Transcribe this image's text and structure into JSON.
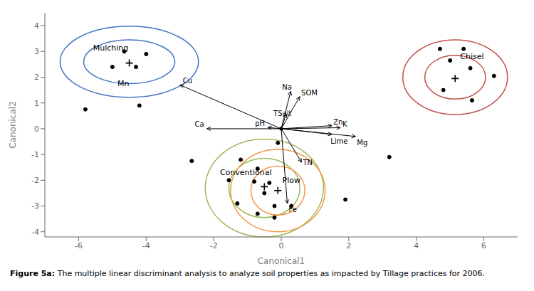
{
  "chart_data": {
    "type": "scatter",
    "xlabel": "Canonical1",
    "ylabel": "Canonical2",
    "xlim": [
      -7,
      7
    ],
    "ylim": [
      -4.2,
      4.5
    ],
    "xticks": [
      -6,
      -4,
      -2,
      0,
      2,
      4,
      6
    ],
    "yticks": [
      -4,
      -3,
      -2,
      -1,
      0,
      1,
      2,
      3,
      4
    ],
    "caption": {
      "bold": "Figure 5a:",
      "text": " The multiple linear discriminant analysis to analyze soil properties as impacted by Tillage practices for 2006."
    },
    "arrows": [
      {
        "label": "Cu",
        "x": -3.0,
        "y": 1.7
      },
      {
        "label": "Ca",
        "x": -2.2,
        "y": 0.0
      },
      {
        "label": "pH",
        "x": -0.4,
        "y": 0.05
      },
      {
        "label": "Na",
        "x": 0.28,
        "y": 1.45
      },
      {
        "label": "SOM",
        "x": 0.55,
        "y": 1.25
      },
      {
        "label": "TSalt",
        "x": 0.15,
        "y": 0.58
      },
      {
        "label": "Zn",
        "x": 1.5,
        "y": 0.12
      },
      {
        "label": "K",
        "x": 1.75,
        "y": 0.04
      },
      {
        "label": "Lime",
        "x": 1.5,
        "y": -0.22
      },
      {
        "label": "Mg",
        "x": 2.2,
        "y": -0.3
      },
      {
        "label": "TN",
        "x": 0.6,
        "y": -1.3
      },
      {
        "label": "Fe",
        "x": 0.18,
        "y": -2.9
      }
    ],
    "series": [
      {
        "name": "Mulching",
        "color": "#4472C4",
        "center": [
          -4.5,
          2.6
        ],
        "label_position": [
          -5.05,
          3.15
        ],
        "ellipses": [
          {
            "rx": 1.35,
            "ry": 0.85
          },
          {
            "rx": 2.05,
            "ry": 1.38
          }
        ],
        "cross": [
          -4.5,
          2.55
        ],
        "points": [
          [
            -5.0,
            2.4
          ],
          [
            -4.3,
            2.4
          ],
          [
            -4.65,
            3.0
          ],
          [
            -4.0,
            2.9
          ],
          [
            -5.8,
            0.75
          ],
          [
            -4.2,
            0.9
          ]
        ]
      },
      {
        "name": "Chisel",
        "color": "#C0504D",
        "center": [
          5.15,
          2.0
        ],
        "label_position": [
          5.65,
          2.8
        ],
        "ellipses": [
          {
            "rx": 0.9,
            "ry": 0.85
          },
          {
            "rx": 1.55,
            "ry": 1.45
          }
        ],
        "cross": [
          5.15,
          1.95
        ],
        "points": [
          [
            4.7,
            3.1
          ],
          [
            5.4,
            3.1
          ],
          [
            5.0,
            2.65
          ],
          [
            5.6,
            2.35
          ],
          [
            4.8,
            1.5
          ],
          [
            5.65,
            1.1
          ],
          [
            6.3,
            2.05
          ]
        ]
      },
      {
        "name": "Conventional",
        "color": "#9BBB59",
        "center": [
          -0.5,
          -2.3
        ],
        "label_position": [
          -1.05,
          -1.7
        ],
        "ellipses": [
          {
            "rx": 1.05,
            "ry": 1.15
          },
          {
            "rx": 1.75,
            "ry": 1.9
          }
        ],
        "cross": [
          -0.5,
          -2.25
        ],
        "points": [
          [
            -0.1,
            -0.55
          ],
          [
            -1.2,
            -1.2
          ],
          [
            -0.7,
            -1.55
          ],
          [
            -2.65,
            -1.25
          ],
          [
            -1.55,
            -2.0
          ],
          [
            -0.8,
            -2.05
          ],
          [
            -0.35,
            -2.1
          ],
          [
            -0.5,
            -2.5
          ],
          [
            -1.3,
            -2.9
          ],
          [
            -0.2,
            -3.0
          ],
          [
            0.3,
            -3.0
          ],
          [
            -0.7,
            -3.3
          ],
          [
            -0.2,
            -3.45
          ]
        ]
      },
      {
        "name": "Plow",
        "color": "#F79646",
        "center": [
          -0.1,
          -2.4
        ],
        "label_position": [
          0.3,
          -2.0
        ],
        "ellipses": [
          {
            "rx": 0.8,
            "ry": 0.95
          },
          {
            "rx": 1.4,
            "ry": 1.6
          }
        ],
        "cross": [
          -0.1,
          -2.4
        ],
        "points": []
      }
    ],
    "annotations": [
      {
        "text": "Mn",
        "x": -4.85,
        "y": 1.65
      }
    ],
    "extra_points": [
      [
        3.2,
        -1.1
      ],
      [
        1.9,
        -2.75
      ]
    ],
    "origin": [
      0.0,
      0.0
    ]
  }
}
